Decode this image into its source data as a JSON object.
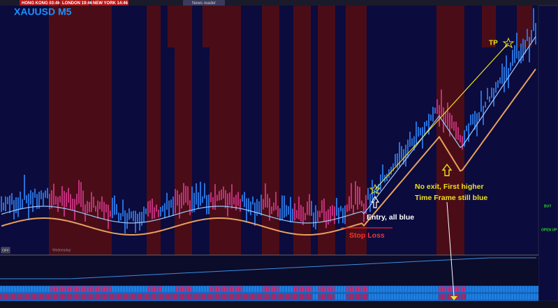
{
  "toolbar": {
    "clocks": [
      "HONG KONG 03:46",
      "LONDON 19:46",
      "NEW YORK 14:46"
    ],
    "news": "News reader"
  },
  "chart": {
    "symbol": "XAUUSD M5",
    "day_label": "Wednesday",
    "off_button": "OFF",
    "side_labels": [
      "BUY",
      "OPEN UP"
    ],
    "annotations": {
      "tp": "TP",
      "note_line1": "No exit, First higher",
      "note_line2": "Time Frame still blue",
      "entry": "Entry, all blue",
      "stop": "Stop Loss"
    }
  }
}
